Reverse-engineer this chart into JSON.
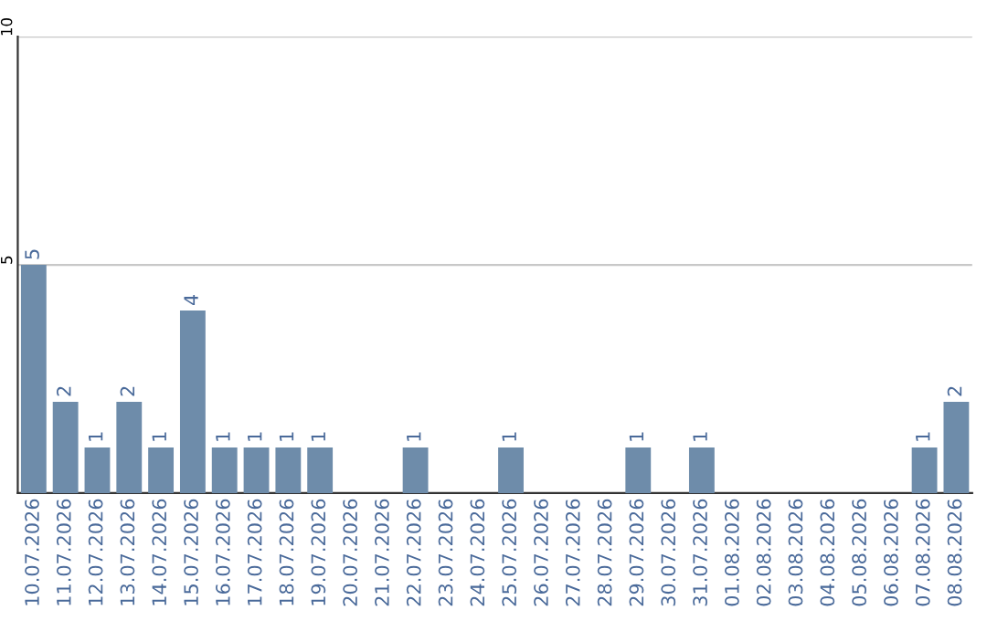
{
  "chart_data": {
    "type": "bar",
    "categories": [
      "10.07.2026",
      "11.07.2026",
      "12.07.2026",
      "13.07.2026",
      "14.07.2026",
      "15.07.2026",
      "16.07.2026",
      "17.07.2026",
      "18.07.2026",
      "19.07.2026",
      "20.07.2026",
      "21.07.2026",
      "22.07.2026",
      "23.07.2026",
      "24.07.2026",
      "25.07.2026",
      "26.07.2026",
      "27.07.2026",
      "28.07.2026",
      "29.07.2026",
      "30.07.2026",
      "31.07.2026",
      "01.08.2026",
      "02.08.2026",
      "03.08.2026",
      "04.08.2026",
      "05.08.2026",
      "06.08.2026",
      "07.08.2026",
      "08.08.2026"
    ],
    "values": [
      5,
      2,
      1,
      2,
      1,
      4,
      1,
      1,
      1,
      1,
      0,
      0,
      1,
      0,
      0,
      1,
      0,
      0,
      0,
      1,
      0,
      1,
      0,
      0,
      0,
      0,
      0,
      0,
      1,
      2
    ],
    "value_labels": [
      "5",
      "2",
      "1",
      "2",
      "1",
      "4",
      "1",
      "1",
      "1",
      "1",
      null,
      null,
      "1",
      null,
      null,
      "1",
      null,
      null,
      null,
      "1",
      null,
      "1",
      null,
      null,
      null,
      null,
      null,
      null,
      "1",
      "2"
    ],
    "color": "#6e8caa",
    "ylim": [
      0,
      10
    ],
    "yticks": [
      5,
      10
    ],
    "grid": "y"
  }
}
